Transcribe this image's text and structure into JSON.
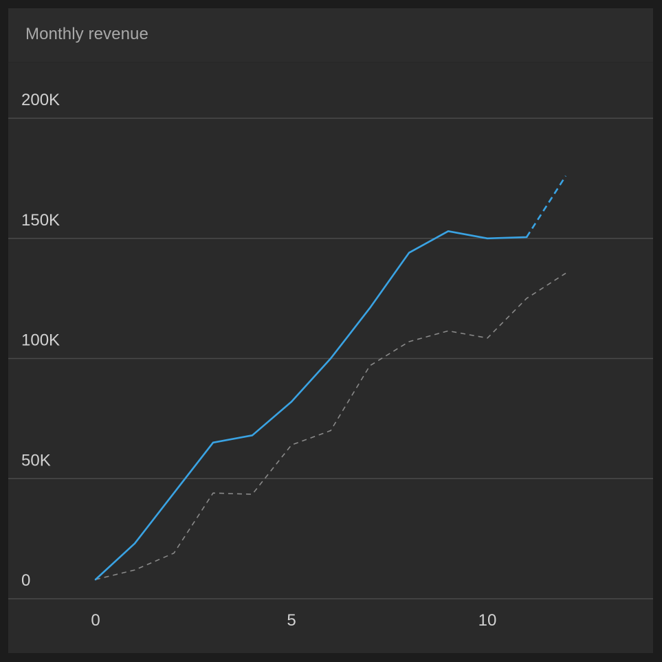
{
  "card": {
    "title": "Monthly revenue"
  },
  "colors": {
    "background": "#1c1c1c",
    "panel": "#2a2a2a",
    "grid": "#4a4a4a",
    "actual_line": "#3aa3e3",
    "comparison_line": "#8a8a8a",
    "tick_text": "#d2d2d2",
    "title_text": "#a9a9a9"
  },
  "chart_data": {
    "type": "line",
    "title": "Monthly revenue",
    "xlabel": "",
    "ylabel": "",
    "xlim": [
      -2.3,
      14
    ],
    "ylim": [
      0,
      200000
    ],
    "grid": true,
    "legend": "none",
    "x_ticks": [
      {
        "value": 0,
        "label": "0"
      },
      {
        "value": 5,
        "label": "5"
      },
      {
        "value": 10,
        "label": "10"
      }
    ],
    "y_ticks": [
      {
        "value": 0,
        "label": "0"
      },
      {
        "value": 50000,
        "label": "50K"
      },
      {
        "value": 100000,
        "label": "100K"
      },
      {
        "value": 150000,
        "label": "150K"
      },
      {
        "value": 200000,
        "label": "200K"
      }
    ],
    "series": [
      {
        "style": "solid-with-dashed-projection",
        "color": "#3aa3e3",
        "x": [
          0,
          1,
          2,
          3,
          4,
          5,
          6,
          7,
          8,
          9,
          10,
          11
        ],
        "y": [
          8000,
          23000,
          44000,
          65000,
          68000,
          82000,
          100000,
          121000,
          144000,
          153000,
          150000,
          150500
        ],
        "projection": {
          "x": [
            11,
            12
          ],
          "y": [
            150500,
            176000
          ]
        }
      },
      {
        "style": "dashed",
        "color": "#8a8a8a",
        "x": [
          0,
          1,
          2,
          3,
          4,
          5,
          6,
          7,
          8,
          9,
          10,
          11,
          12
        ],
        "y": [
          8000,
          12000,
          19000,
          44000,
          43500,
          64000,
          70000,
          97000,
          107000,
          111500,
          108500,
          125000,
          135500
        ]
      }
    ]
  }
}
